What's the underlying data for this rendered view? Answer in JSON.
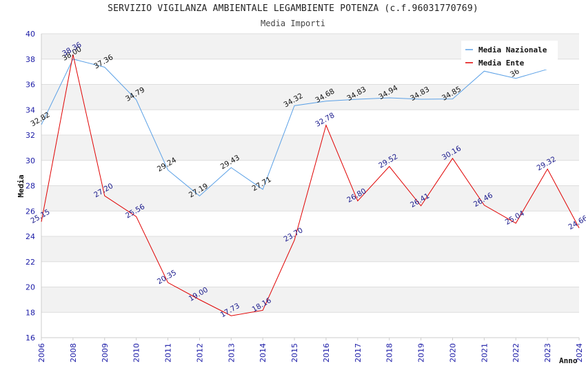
{
  "header": {
    "title": "SERVIZIO VIGILANZA AMBIENTALE LEGAMBIENTE POTENZA (c.f.96031770769)",
    "subtitle": "Media Importi"
  },
  "chart_data": {
    "type": "line",
    "title": "SERVIZIO VIGILANZA AMBIENTALE LEGAMBIENTE POTENZA (c.f.96031770769)",
    "subtitle": "Media Importi",
    "xlabel": "Anno",
    "ylabel": "Media",
    "ylim": [
      16,
      40
    ],
    "yticks": [
      16,
      18,
      20,
      22,
      24,
      26,
      28,
      30,
      32,
      34,
      36,
      38,
      40
    ],
    "categories": [
      "2006",
      "2008",
      "2009",
      "2010",
      "2011",
      "2012",
      "2013",
      "2014",
      "2015",
      "2016",
      "2017",
      "2018",
      "2019",
      "2020",
      "2021",
      "2022",
      "2023",
      "2024"
    ],
    "grid": true,
    "legend_position": "top-right",
    "series": [
      {
        "name": "Media Nazionale",
        "color": "#5aa0e6",
        "values": [
          32.82,
          38.0,
          37.36,
          34.79,
          29.24,
          27.19,
          29.43,
          27.71,
          34.32,
          34.68,
          34.83,
          34.94,
          34.83,
          34.85,
          37.05,
          36.48,
          37.2,
          null
        ],
        "labels": [
          "32.82",
          "38.00",
          "37.36",
          "34.79",
          "29.24",
          "27.19",
          "29.43",
          "27.71",
          "34.32",
          "34.68",
          "34.83",
          "34.94",
          "34.83",
          "34.85",
          "",
          "36",
          "",
          ""
        ]
      },
      {
        "name": "Media Ente",
        "color": "#e00000",
        "values": [
          25.15,
          38.36,
          27.2,
          25.56,
          20.35,
          19.0,
          17.73,
          18.16,
          23.7,
          32.78,
          26.8,
          29.52,
          26.41,
          30.16,
          26.46,
          25.04,
          29.32,
          24.66
        ],
        "labels": [
          "25.15",
          "38.36",
          "27.20",
          "25.56",
          "20.35",
          "19.00",
          "17.73",
          "18.16",
          "23.70",
          "32.78",
          "26.80",
          "29.52",
          "26.41",
          "30.16",
          "26.46",
          "25.04",
          "29.32",
          "24.66"
        ]
      }
    ]
  }
}
